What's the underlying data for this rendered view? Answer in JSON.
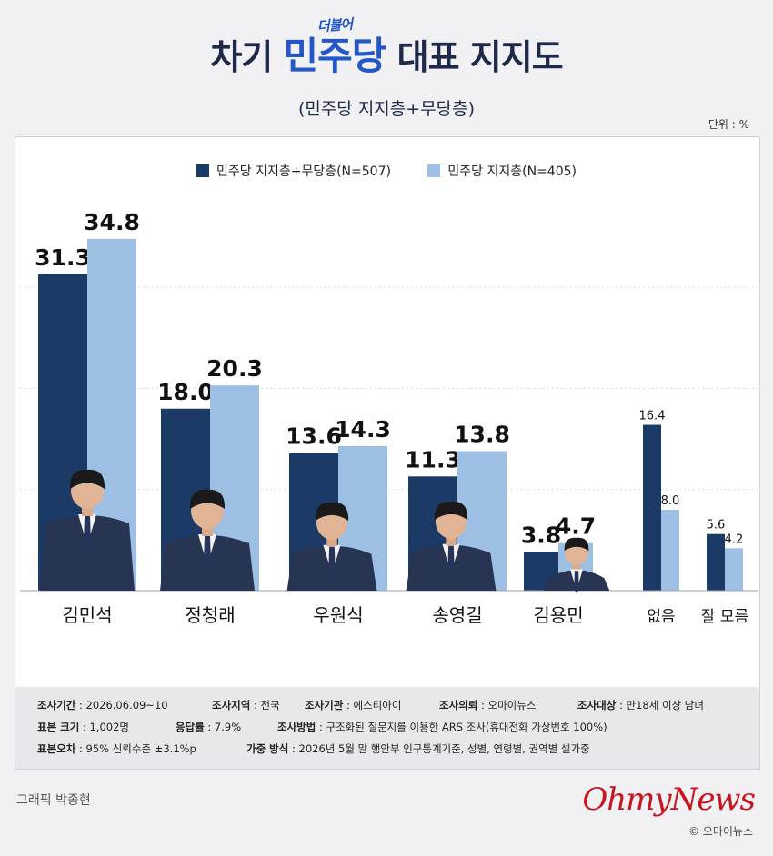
{
  "header": {
    "title_pre": "차기 ",
    "title_brand": "민주당",
    "title_tag": "더불어",
    "title_post": " 대표 지지도",
    "subtitle": "(민주당 지지층+무당층)",
    "unit": "단위 : %"
  },
  "chart_data": {
    "type": "bar",
    "title": "차기 더불어민주당 대표 지지도",
    "subtitle": "(민주당 지지층+무당층)",
    "categories": [
      "김민석",
      "정청래",
      "우원식",
      "송영길",
      "김용민",
      "없음",
      "잘 모름"
    ],
    "series": [
      {
        "name": "민주당 지지층+무당층(N=507)",
        "color": "#1c3a66",
        "values": [
          31.3,
          18.0,
          13.6,
          11.3,
          3.8,
          16.4,
          5.6
        ]
      },
      {
        "name": "민주당 지지층(N=405)",
        "color": "#9dbfe3",
        "values": [
          34.8,
          20.3,
          14.3,
          13.8,
          4.7,
          8.0,
          4.2
        ]
      }
    ],
    "ylim": [
      0,
      40
    ],
    "grid": true,
    "legend": "top-center"
  },
  "notes": {
    "row1": [
      {
        "k": "조사기간",
        "v": " : 2026.06.09~10"
      },
      {
        "k": "조사지역",
        "v": " : 전국"
      },
      {
        "k": "조사기관",
        "v": " : 에스티아이"
      },
      {
        "k": "조사의뢰",
        "v": " : 오마이뉴스"
      },
      {
        "k": "조사대상",
        "v": " : 만18세 이상 남녀"
      }
    ],
    "row2": [
      {
        "k": "표본 크기",
        "v": " : 1,002명"
      },
      {
        "k": "응답률",
        "v": " : 7.9%"
      },
      {
        "k": "조사방법",
        "v": " : 구조화된 질문지를 이용한 ARS 조사(휴대전화 가상번호 100%)"
      }
    ],
    "row3": [
      {
        "k": "표본오차",
        "v": " : 95% 신뢰수준 ±3.1%p"
      },
      {
        "k": "가중 방식",
        "v": " : 2026년 5월 말 행안부 인구통계기준, 성별, 연령별, 권역별 셀가중"
      }
    ]
  },
  "footer": {
    "credit": "그래픽 박종현",
    "logo": "OhmyNews",
    "copyright": "© 오마이뉴스"
  }
}
